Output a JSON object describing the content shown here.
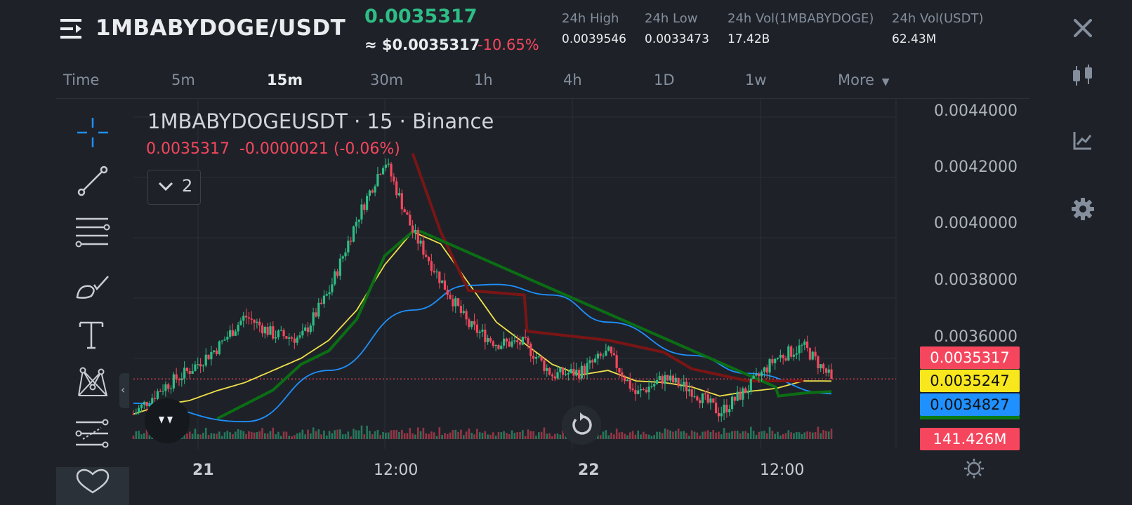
{
  "header": {
    "pair": "1MBABYDOGE/USDT",
    "last_price": "0.0035317",
    "usd_price": "≈ $0.0035317",
    "change_pct": "-10.65%",
    "stats": [
      {
        "label": "24h High",
        "value": "0.0039546"
      },
      {
        "label": "24h Low",
        "value": "0.0033473"
      },
      {
        "label": "24h Vol(1MBABYDOGE)",
        "value": "17.42B"
      },
      {
        "label": "24h Vol(USDT)",
        "value": "62.43M"
      }
    ]
  },
  "timeframes": [
    "Time",
    "5m",
    "15m",
    "30m",
    "1h",
    "4h",
    "1D",
    "1w",
    "More"
  ],
  "active_timeframe": "15m",
  "legend": {
    "title": "1MBABYDOGEUSDT · 15 · Binance",
    "ohlc_line": "0.0035317  -0.0000021 (-0.06%)",
    "indicator_count": "2"
  },
  "price_axis": [
    "0.0044000",
    "0.0042000",
    "0.0040000",
    "0.0038000",
    "0.0036000"
  ],
  "price_tags": {
    "last": "0.0035317",
    "ma_yellow": "0.0035247",
    "ma_blue": "0.0034827",
    "volume": "141.426M"
  },
  "date_axis": [
    "21",
    "12:00",
    "22",
    "12:00"
  ],
  "colors": {
    "up": "#2ebd85",
    "down": "#f6465d",
    "ma_yellow": "#f0e04a",
    "ma_blue": "#1e90ff",
    "stop_red": "#7a1515",
    "stop_green": "#0b6e14",
    "background": "#1e2228"
  },
  "icons": {
    "menu": "menu-icon",
    "close": "close-icon",
    "candles": "candlestick-icon",
    "chart": "chart-line-icon",
    "settings": "gear-icon",
    "tools": [
      "crosshair-icon",
      "trend-line-icon",
      "horizontal-lines-icon",
      "brush-icon",
      "text-icon",
      "pattern-icon",
      "measure-icon",
      "favorite-icon"
    ],
    "reset": "reset-icon",
    "theme": "sun-icon"
  },
  "chart_data": {
    "type": "candlestick",
    "symbol": "1MBABYDOGEUSDT",
    "interval": "15",
    "ylim": [
      0.00343,
      0.00443
    ],
    "anchors": [
      [
        0.003415,
        0.003415
      ],
      [
        0.0035,
        0.003445
      ],
      [
        0.00356,
        0.00346
      ],
      [
        0.003635,
        0.003493
      ],
      [
        0.00374,
        0.00352
      ],
      [
        0.00368,
        0.00356
      ],
      [
        0.003665,
        0.0036
      ],
      [
        0.00382,
        0.00366
      ],
      [
        0.00406,
        0.00376
      ],
      [
        0.00426,
        0.00391
      ],
      [
        0.00402,
        0.00402
      ],
      [
        0.00386,
        0.00398
      ],
      [
        0.00371,
        0.00385
      ],
      [
        0.00365,
        0.00372
      ],
      [
        0.00365,
        0.00365
      ],
      [
        0.003545,
        0.00358
      ],
      [
        0.003555,
        0.003545
      ],
      [
        0.00362,
        0.00356
      ],
      [
        0.00348,
        0.003525
      ],
      [
        0.003535,
        0.00352
      ],
      [
        0.003495,
        0.003505
      ],
      [
        0.00342,
        0.003475
      ],
      [
        0.0035,
        0.00349
      ],
      [
        0.0036,
        0.0035
      ],
      [
        0.00364,
        0.003525
      ],
      [
        0.0035317,
        0.0035247
      ]
    ],
    "ma_blue": [
      [
        0,
        null
      ],
      [
        4,
        0.00339
      ],
      [
        7,
        0.00356
      ],
      [
        10,
        0.00376
      ],
      [
        12,
        0.003842
      ],
      [
        13,
        0.003845
      ],
      [
        15,
        0.00381
      ],
      [
        17,
        0.00372
      ],
      [
        20,
        0.00361
      ],
      [
        22,
        0.00355
      ],
      [
        25,
        0.0034827
      ]
    ],
    "stop_red": [
      [
        10,
        0.00428
      ],
      [
        11,
        0.00402
      ],
      [
        12,
        0.003825
      ],
      [
        14,
        0.00381
      ],
      [
        14.1,
        0.00369
      ],
      [
        17,
        0.00366
      ],
      [
        19,
        0.00362
      ],
      [
        20,
        0.003565
      ],
      [
        22,
        0.003525
      ],
      [
        24,
        0.003525
      ]
    ],
    "stop_green": [
      [
        3,
        0.0034
      ],
      [
        5,
        0.003495
      ],
      [
        6,
        0.00358
      ],
      [
        7,
        0.003625
      ],
      [
        8,
        0.00373
      ],
      [
        9,
        0.00394
      ],
      [
        10,
        0.00402
      ],
      [
        10.3,
        0.00402
      ],
      [
        23,
        0.003505
      ],
      [
        23.1,
        0.003475
      ],
      [
        24,
        0.003485
      ],
      [
        25,
        0.00349
      ]
    ]
  }
}
